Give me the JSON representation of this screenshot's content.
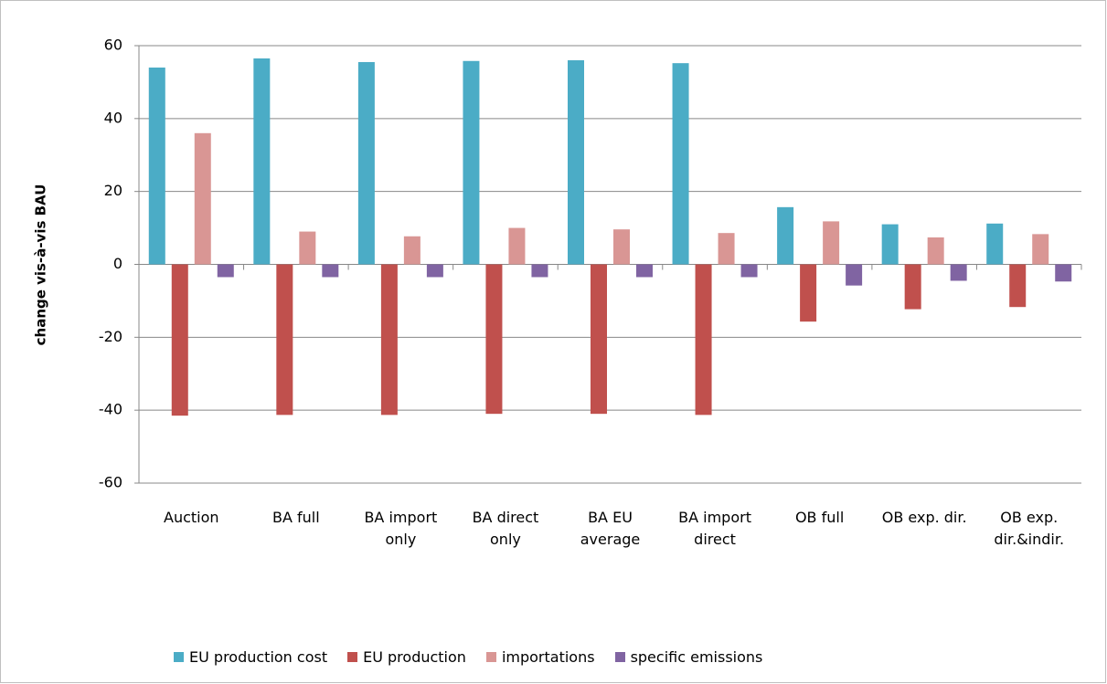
{
  "chart_data": {
    "type": "bar",
    "y_label": "change vis-à-vis BAU",
    "categories": [
      "Auction",
      "BA full",
      "BA import only",
      "BA direct only",
      "BA EU average",
      "BA import direct",
      "OB full",
      "OB exp. dir.",
      "OB exp. dir.&indir."
    ],
    "series": [
      {
        "name": "EU production cost",
        "color": "#4bacc6",
        "values": [
          54,
          56.5,
          55.5,
          55.8,
          56,
          55.2,
          15.7,
          11,
          11.2
        ]
      },
      {
        "name": "EU production",
        "color": "#c0504d",
        "values": [
          -41.5,
          -41.3,
          -41.3,
          -41,
          -41,
          -41.3,
          -15.7,
          -12.3,
          -11.7
        ]
      },
      {
        "name": "importations",
        "color": "#d99694",
        "values": [
          36,
          9,
          7.7,
          10,
          9.6,
          8.6,
          11.8,
          7.4,
          8.3
        ]
      },
      {
        "name": "specific emissions",
        "color": "#8064a2",
        "values": [
          -3.5,
          -3.5,
          -3.5,
          -3.5,
          -3.5,
          -3.5,
          -5.8,
          -4.5,
          -4.7
        ]
      }
    ],
    "ylim": [
      -60,
      60
    ],
    "yticks": [
      -60,
      -40,
      -20,
      0,
      20,
      40,
      60
    ],
    "grid": true,
    "legend": "bottom"
  }
}
